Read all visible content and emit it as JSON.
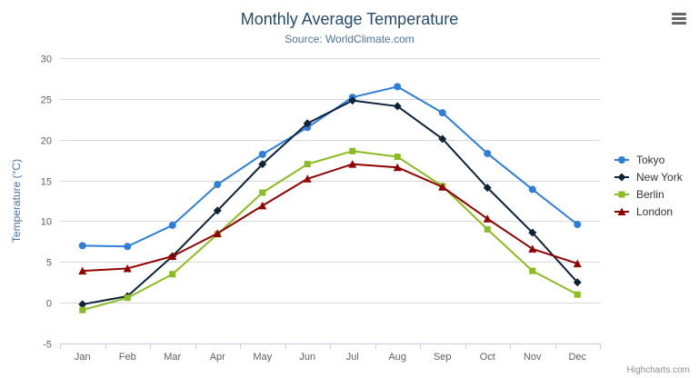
{
  "chart_data": {
    "type": "line",
    "title": "Monthly Average Temperature",
    "subtitle": "Source: WorldClimate.com",
    "categories": [
      "Jan",
      "Feb",
      "Mar",
      "Apr",
      "May",
      "Jun",
      "Jul",
      "Aug",
      "Sep",
      "Oct",
      "Nov",
      "Dec"
    ],
    "xlabel": "",
    "ylabel": "Temperature (°C)",
    "ylim": [
      -5,
      30
    ],
    "ytick_interval": 5,
    "grid": true,
    "legend_position": "right",
    "series": [
      {
        "name": "Tokyo",
        "color": "#2f7ed8",
        "marker": "circle",
        "values": [
          7.0,
          6.9,
          9.5,
          14.5,
          18.2,
          21.5,
          25.2,
          26.5,
          23.3,
          18.3,
          13.9,
          9.6
        ]
      },
      {
        "name": "New York",
        "color": "#0d233a",
        "marker": "diamond",
        "values": [
          -0.2,
          0.8,
          5.7,
          11.3,
          17.0,
          22.0,
          24.8,
          24.1,
          20.1,
          14.1,
          8.6,
          2.5
        ]
      },
      {
        "name": "Berlin",
        "color": "#8bbc21",
        "marker": "square",
        "values": [
          -0.9,
          0.6,
          3.5,
          8.4,
          13.5,
          17.0,
          18.6,
          17.9,
          14.3,
          9.0,
          3.9,
          1.0
        ]
      },
      {
        "name": "London",
        "color": "#910000",
        "marker": "triangle",
        "values": [
          3.9,
          4.2,
          5.7,
          8.5,
          11.9,
          15.2,
          17.0,
          16.6,
          14.2,
          10.3,
          6.6,
          4.8
        ]
      }
    ],
    "colors": {
      "title": "#274b6d",
      "subtitle": "#4d759e",
      "axis_label": "#606060",
      "grid_line": "#d8d8d8",
      "axis_line": "#c0d0e0",
      "legend_text": "#333333"
    }
  },
  "credits": "Highcharts.com",
  "export_menu": {
    "icon": "hamburger-icon"
  }
}
